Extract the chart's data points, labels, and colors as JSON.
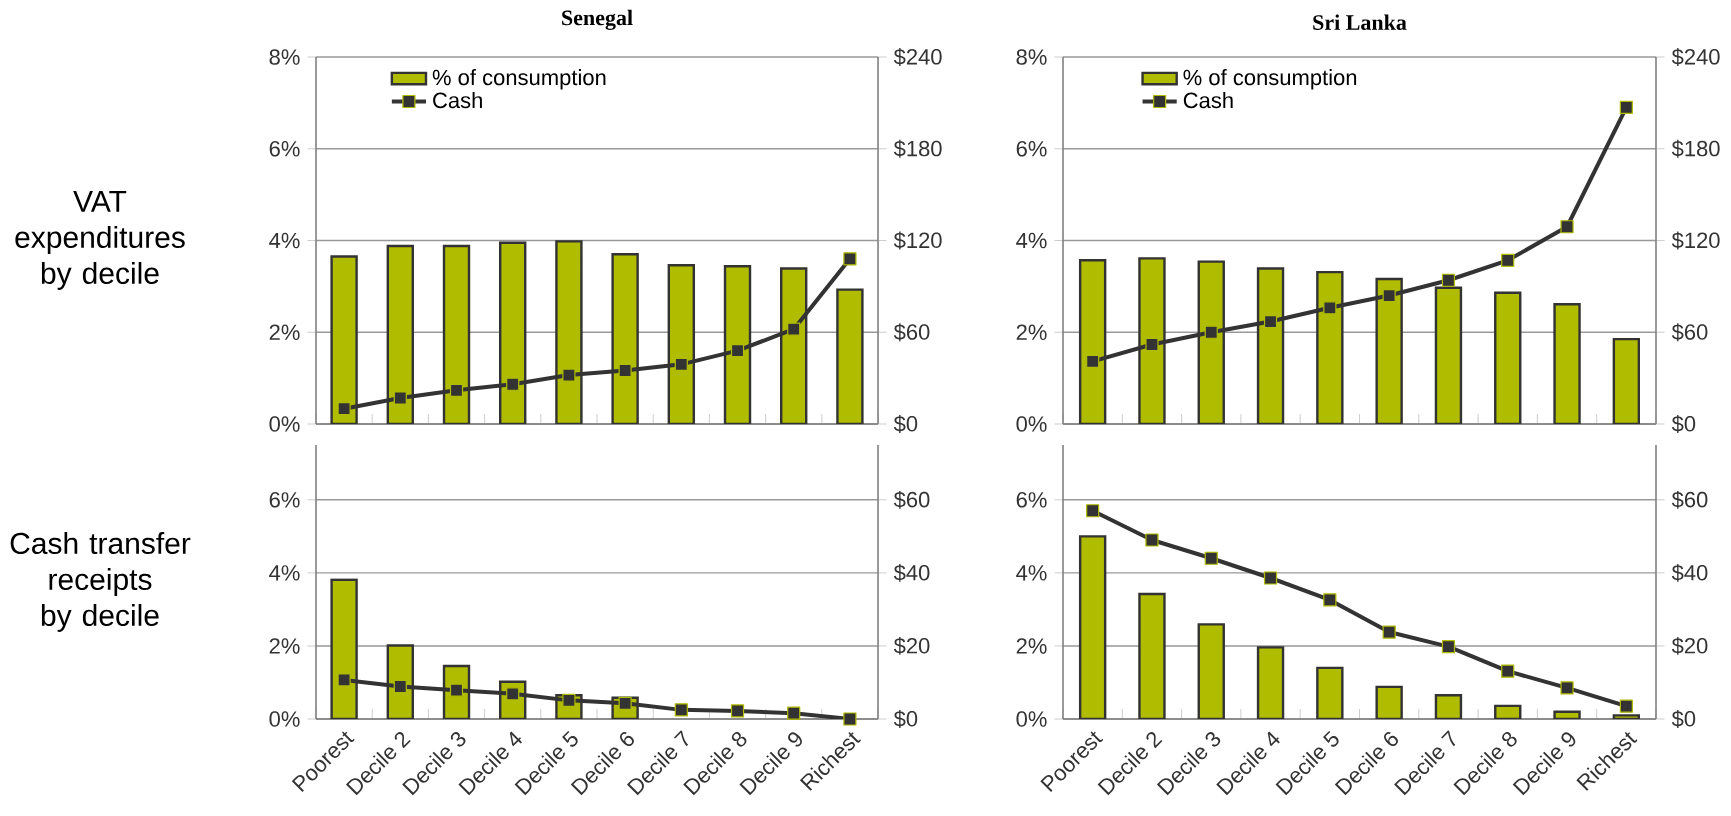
{
  "chart_data": [
    {
      "type": "bar",
      "title": "Senegal",
      "annotations": [
        "VAT expenditures by decile"
      ],
      "categories": [
        null,
        null,
        null,
        null,
        null,
        null,
        null,
        null,
        null,
        null
      ],
      "series": [
        {
          "name": "% of consumption",
          "color": "#b0bc00",
          "values": [
            3.65,
            3.88,
            3.88,
            3.95,
            3.98,
            3.7,
            3.46,
            3.44,
            3.39,
            2.93
          ]
        },
        {
          "name": "Cash",
          "type": "line",
          "axis": "y2",
          "color": "#333333",
          "values": [
            10,
            17,
            22,
            26,
            32,
            35,
            39,
            48,
            62,
            108
          ]
        }
      ],
      "ylim": [
        0,
        8
      ],
      "yticks": [
        {
          "value": 0,
          "label": "0%"
        },
        {
          "value": 2,
          "label": "2%"
        },
        {
          "value": 4,
          "label": "4%"
        },
        {
          "value": 6,
          "label": "6%"
        },
        {
          "value": 8,
          "label": "8%"
        }
      ],
      "y2lim": [
        0,
        240
      ],
      "y2ticks": [
        {
          "value": 0,
          "label": "$0"
        },
        {
          "value": 60,
          "label": "$60"
        },
        {
          "value": 120,
          "label": "$120"
        },
        {
          "value": 180,
          "label": "$180"
        },
        {
          "value": 240,
          "label": "$240"
        }
      ],
      "grid": "y",
      "legend": "top left",
      "tick_labels": "y",
      "marker": "square"
    },
    {
      "type": "bar",
      "title": "Sri Lanka",
      "categories": [
        null,
        null,
        null,
        null,
        null,
        null,
        null,
        null,
        null,
        null
      ],
      "series": [
        {
          "name": "% of consumption",
          "color": "#b0bc00",
          "values": [
            3.57,
            3.61,
            3.54,
            3.39,
            3.31,
            3.16,
            2.97,
            2.86,
            2.61,
            1.85
          ]
        },
        {
          "name": "Cash",
          "type": "line",
          "axis": "y2",
          "color": "#333333",
          "values": [
            41,
            52,
            60,
            67,
            76,
            84,
            94,
            107,
            129,
            207
          ]
        }
      ],
      "ylim": [
        0,
        8
      ],
      "yticks": [
        {
          "value": 0,
          "label": "0%"
        },
        {
          "value": 2,
          "label": "2%"
        },
        {
          "value": 4,
          "label": "4%"
        },
        {
          "value": 6,
          "label": "6%"
        },
        {
          "value": 8,
          "label": "8%"
        }
      ],
      "y2lim": [
        0,
        240
      ],
      "y2ticks": [
        {
          "value": 0,
          "label": "$0"
        },
        {
          "value": 60,
          "label": "$60"
        },
        {
          "value": 120,
          "label": "$120"
        },
        {
          "value": 180,
          "label": "$180"
        },
        {
          "value": 240,
          "label": "$240"
        }
      ],
      "grid": "y",
      "legend": "top left",
      "tick_labels": "y",
      "marker": "square"
    },
    {
      "type": "bar",
      "annotations": [
        "Cash transfer receipts by decile"
      ],
      "categories": [
        "Poorest",
        "Decile 2",
        "Decile 3",
        "Decile 4",
        "Decile 5",
        "Decile 6",
        "Decile 7",
        "Decile 8",
        "Decile 9",
        "Richest"
      ],
      "series": [
        {
          "color": "#b0bc00",
          "values": [
            3.81,
            2.01,
            1.45,
            1.02,
            0.65,
            0.58,
            null,
            null,
            null,
            null
          ]
        },
        {
          "type": "line",
          "axis": "y2",
          "color": "#333333",
          "values": [
            10.7,
            8.9,
            7.9,
            6.9,
            5.1,
            4.3,
            2.5,
            2.2,
            1.6,
            0
          ]
        }
      ],
      "ylim": [
        0,
        7.5
      ],
      "yticks": [
        {
          "value": 0,
          "label": "0%"
        },
        {
          "value": 2,
          "label": "2%"
        },
        {
          "value": 4,
          "label": "4%"
        },
        {
          "value": 6,
          "label": "6%"
        }
      ],
      "y2lim": [
        0,
        75
      ],
      "y2ticks": [
        {
          "value": 0,
          "label": "$0"
        },
        {
          "value": 20,
          "label": "$20"
        },
        {
          "value": 40,
          "label": "$40"
        },
        {
          "value": 60,
          "label": "$60"
        }
      ],
      "grid": "y",
      "marker": "square"
    },
    {
      "type": "bar",
      "categories": [
        "Poorest",
        "Decile 2",
        "Decile 3",
        "Decile 4",
        "Decile 5",
        "Decile 6",
        "Decile 7",
        "Decile 8",
        "Decile 9",
        "Richest"
      ],
      "series": [
        {
          "color": "#b0bc00",
          "values": [
            5.0,
            3.42,
            2.59,
            1.96,
            1.4,
            0.88,
            0.65,
            0.36,
            0.2,
            0.1
          ]
        },
        {
          "type": "line",
          "axis": "y2",
          "color": "#333333",
          "values": [
            57,
            49,
            44,
            38.6,
            32.6,
            23.8,
            19.8,
            13.1,
            8.5,
            3.5
          ]
        }
      ],
      "ylim": [
        0,
        7.5
      ],
      "yticks": [
        {
          "value": 0,
          "label": "0%"
        },
        {
          "value": 2,
          "label": "2%"
        },
        {
          "value": 4,
          "label": "4%"
        },
        {
          "value": 6,
          "label": "6%"
        }
      ],
      "y2lim": [
        0,
        75
      ],
      "y2ticks": [
        {
          "value": 0,
          "label": "$0"
        },
        {
          "value": 20,
          "label": "$20"
        },
        {
          "value": 40,
          "label": "$40"
        },
        {
          "value": 60,
          "label": "$60"
        }
      ],
      "grid": "y",
      "marker": "square"
    }
  ]
}
